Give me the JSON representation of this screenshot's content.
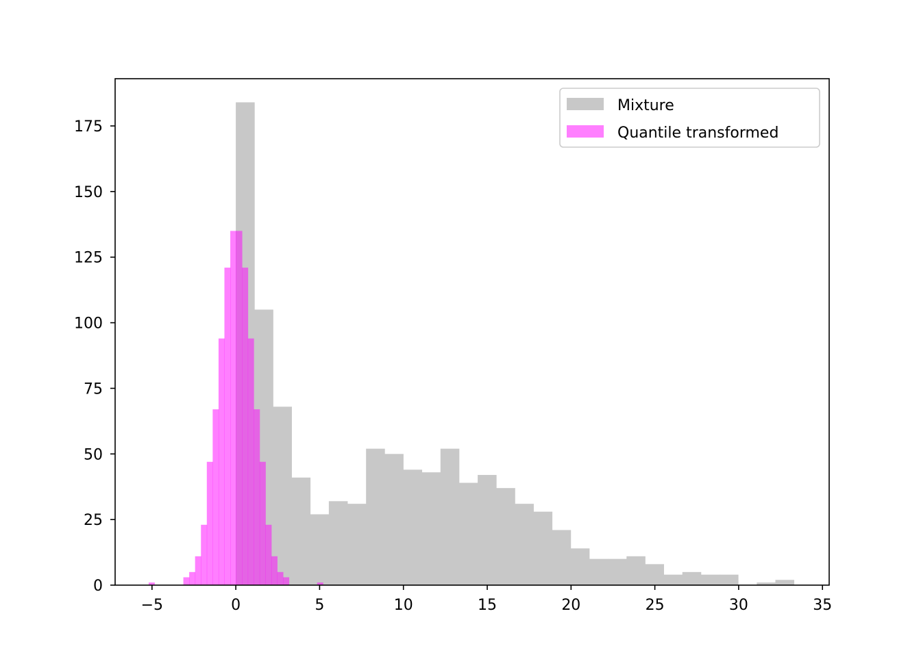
{
  "chart_data": {
    "type": "bar",
    "title": "",
    "xlabel": "",
    "ylabel": "",
    "xlim": [
      -7.2,
      35.4
    ],
    "ylim": [
      0,
      193
    ],
    "xticks": [
      -5,
      0,
      5,
      10,
      15,
      20,
      25,
      30,
      35
    ],
    "xtick_labels": [
      "−5",
      "0",
      "5",
      "10",
      "15",
      "20",
      "25",
      "30",
      "35"
    ],
    "yticks": [
      0,
      25,
      50,
      75,
      100,
      125,
      150,
      175
    ],
    "ytick_labels": [
      "0",
      "25",
      "50",
      "75",
      "100",
      "125",
      "150",
      "175"
    ],
    "grid": false,
    "legend_position": "top-right",
    "series": [
      {
        "name": "Mixture",
        "color": "#c8c8c8",
        "bin_width": 1.11,
        "bins": [
          {
            "x0": 0.0,
            "x1": 1.11,
            "count": 184
          },
          {
            "x0": 1.11,
            "x1": 2.22,
            "count": 105
          },
          {
            "x0": 2.22,
            "x1": 3.33,
            "count": 68
          },
          {
            "x0": 3.33,
            "x1": 4.44,
            "count": 41
          },
          {
            "x0": 4.44,
            "x1": 5.55,
            "count": 27
          },
          {
            "x0": 5.55,
            "x1": 6.66,
            "count": 32
          },
          {
            "x0": 6.66,
            "x1": 7.77,
            "count": 31
          },
          {
            "x0": 7.77,
            "x1": 8.88,
            "count": 52
          },
          {
            "x0": 8.88,
            "x1": 9.99,
            "count": 50
          },
          {
            "x0": 9.99,
            "x1": 11.1,
            "count": 44
          },
          {
            "x0": 11.1,
            "x1": 12.21,
            "count": 43
          },
          {
            "x0": 12.21,
            "x1": 13.32,
            "count": 52
          },
          {
            "x0": 13.32,
            "x1": 14.43,
            "count": 39
          },
          {
            "x0": 14.43,
            "x1": 15.54,
            "count": 42
          },
          {
            "x0": 15.54,
            "x1": 16.65,
            "count": 37
          },
          {
            "x0": 16.65,
            "x1": 17.76,
            "count": 31
          },
          {
            "x0": 17.76,
            "x1": 18.87,
            "count": 28
          },
          {
            "x0": 18.87,
            "x1": 19.98,
            "count": 21
          },
          {
            "x0": 19.98,
            "x1": 21.09,
            "count": 14
          },
          {
            "x0": 21.09,
            "x1": 22.2,
            "count": 10
          },
          {
            "x0": 22.2,
            "x1": 23.31,
            "count": 10
          },
          {
            "x0": 23.31,
            "x1": 24.42,
            "count": 11
          },
          {
            "x0": 24.42,
            "x1": 25.53,
            "count": 8
          },
          {
            "x0": 25.53,
            "x1": 26.64,
            "count": 4
          },
          {
            "x0": 26.64,
            "x1": 27.75,
            "count": 5
          },
          {
            "x0": 27.75,
            "x1": 28.86,
            "count": 4
          },
          {
            "x0": 28.86,
            "x1": 29.97,
            "count": 4
          },
          {
            "x0": 29.97,
            "x1": 31.08,
            "count": 0
          },
          {
            "x0": 31.08,
            "x1": 32.19,
            "count": 1
          },
          {
            "x0": 32.19,
            "x1": 33.3,
            "count": 2
          }
        ]
      },
      {
        "name": "Quantile transformed",
        "color": "#ff00ff",
        "opacity": 0.5,
        "bins": [
          {
            "x0": -5.2,
            "x1": -4.85,
            "count": 1
          },
          {
            "x0": -3.13,
            "x1": -2.78,
            "count": 3
          },
          {
            "x0": -2.78,
            "x1": -2.43,
            "count": 5
          },
          {
            "x0": -2.43,
            "x1": -2.08,
            "count": 11
          },
          {
            "x0": -2.08,
            "x1": -1.73,
            "count": 23
          },
          {
            "x0": -1.73,
            "x1": -1.38,
            "count": 47
          },
          {
            "x0": -1.38,
            "x1": -1.03,
            "count": 67
          },
          {
            "x0": -1.03,
            "x1": -0.68,
            "count": 94
          },
          {
            "x0": -0.68,
            "x1": -0.33,
            "count": 121
          },
          {
            "x0": -0.33,
            "x1": 0.02,
            "count": 135
          },
          {
            "x0": 0.02,
            "x1": 0.37,
            "count": 135
          },
          {
            "x0": 0.37,
            "x1": 0.72,
            "count": 121
          },
          {
            "x0": 0.72,
            "x1": 1.07,
            "count": 94
          },
          {
            "x0": 1.07,
            "x1": 1.42,
            "count": 67
          },
          {
            "x0": 1.42,
            "x1": 1.77,
            "count": 47
          },
          {
            "x0": 1.77,
            "x1": 2.12,
            "count": 23
          },
          {
            "x0": 2.12,
            "x1": 2.47,
            "count": 11
          },
          {
            "x0": 2.47,
            "x1": 2.82,
            "count": 5
          },
          {
            "x0": 2.82,
            "x1": 3.17,
            "count": 3
          },
          {
            "x0": 4.85,
            "x1": 5.2,
            "count": 1
          }
        ]
      }
    ]
  }
}
